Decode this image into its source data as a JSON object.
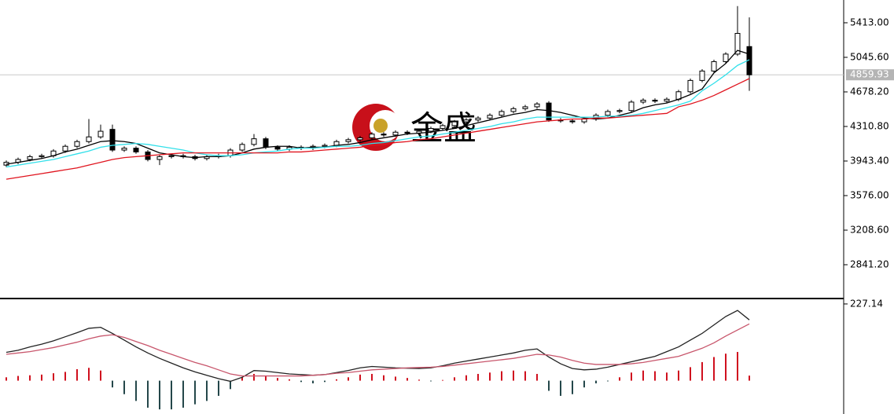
{
  "chart_data": [
    {
      "type": "candlestick",
      "watermark": "金盛",
      "ylim": [
        2482,
        5655
      ],
      "yticks": [
        {
          "value": 5413,
          "label": "5413.00"
        },
        {
          "value": 5045.6,
          "label": "5045.60"
        },
        {
          "value": 4678.2,
          "label": "4678.20"
        },
        {
          "value": 4310.8,
          "label": "4310.80"
        },
        {
          "value": 3943.4,
          "label": "3943.40"
        },
        {
          "value": 3576,
          "label": "3576.00"
        },
        {
          "value": 3208.6,
          "label": "3208.60"
        },
        {
          "value": 2841.2,
          "label": "2841.20"
        }
      ],
      "last_price": 4859.93,
      "up_color": "#ffffff",
      "down_color": "#000000",
      "open": [
        3900,
        3930,
        3960,
        3990,
        4000,
        4050,
        4100,
        4150,
        4200,
        4280,
        4060,
        4080,
        4040,
        3960,
        3990,
        4000,
        3990,
        3970,
        3990,
        4000,
        4060,
        4120,
        4180,
        4090,
        4070,
        4090,
        4080,
        4100,
        4110,
        4150,
        4170,
        4190,
        4230,
        4220,
        4250,
        4240,
        4260,
        4290,
        4320,
        4360,
        4380,
        4400,
        4430,
        4470,
        4500,
        4520,
        4560,
        4380,
        4370,
        4360,
        4390,
        4430,
        4470,
        4480,
        4570,
        4590,
        4580,
        4600,
        4680,
        4800,
        4900,
        5000,
        5080,
        5160
      ],
      "high": [
        3950,
        3980,
        4010,
        4020,
        4070,
        4120,
        4170,
        4390,
        4330,
        4330,
        4100,
        4100,
        4060,
        4010,
        4020,
        4020,
        4010,
        4010,
        4020,
        4080,
        4140,
        4230,
        4200,
        4110,
        4110,
        4110,
        4120,
        4130,
        4170,
        4190,
        4210,
        4250,
        4250,
        4270,
        4270,
        4280,
        4310,
        4340,
        4380,
        4400,
        4420,
        4450,
        4490,
        4520,
        4540,
        4570,
        4580,
        4400,
        4390,
        4410,
        4450,
        4490,
        4500,
        4590,
        4610,
        4610,
        4620,
        4700,
        4820,
        4920,
        5020,
        5100,
        5590,
        5470
      ],
      "low": [
        3880,
        3910,
        3940,
        3970,
        3980,
        4030,
        4080,
        4130,
        4180,
        4040,
        4040,
        4020,
        3940,
        3900,
        3970,
        3970,
        3950,
        3950,
        3970,
        3980,
        4040,
        4100,
        4070,
        4050,
        4050,
        4060,
        4060,
        4080,
        4090,
        4130,
        4150,
        4170,
        4200,
        4200,
        4220,
        4220,
        4240,
        4270,
        4300,
        4340,
        4360,
        4380,
        4410,
        4450,
        4480,
        4500,
        4360,
        4350,
        4340,
        4340,
        4370,
        4410,
        4450,
        4460,
        4550,
        4560,
        4560,
        4580,
        4660,
        4780,
        4880,
        4980,
        5060,
        4690
      ],
      "close": [
        3930,
        3960,
        3990,
        4000,
        4050,
        4100,
        4150,
        4200,
        4260,
        4060,
        4080,
        4040,
        3960,
        3990,
        4000,
        3990,
        3970,
        3990,
        4000,
        4060,
        4120,
        4180,
        4090,
        4070,
        4090,
        4080,
        4100,
        4110,
        4150,
        4170,
        4190,
        4230,
        4220,
        4250,
        4240,
        4260,
        4290,
        4320,
        4360,
        4380,
        4400,
        4430,
        4470,
        4500,
        4520,
        4550,
        4380,
        4370,
        4360,
        4390,
        4430,
        4470,
        4480,
        4570,
        4590,
        4580,
        4600,
        4680,
        4800,
        4900,
        5000,
        5080,
        5300,
        4860
      ],
      "series": [
        {
          "color": "#000000",
          "values": [
            3910,
            3930,
            3950,
            3970,
            4000,
            4040,
            4070,
            4110,
            4150,
            4160,
            4150,
            4130,
            4080,
            4030,
            4010,
            3990,
            3980,
            3990,
            3990,
            4000,
            4030,
            4070,
            4090,
            4100,
            4100,
            4080,
            4090,
            4090,
            4110,
            4120,
            4140,
            4170,
            4190,
            4210,
            4230,
            4240,
            4250,
            4270,
            4290,
            4320,
            4350,
            4380,
            4410,
            4440,
            4460,
            4490,
            4480,
            4460,
            4430,
            4400,
            4390,
            4400,
            4430,
            4460,
            4510,
            4540,
            4560,
            4600,
            4650,
            4710,
            4880,
            4980,
            5120,
            5080
          ]
        },
        {
          "color": "#33e0ea",
          "values": [
            3880,
            3900,
            3920,
            3940,
            3960,
            3990,
            4020,
            4050,
            4090,
            4110,
            4120,
            4130,
            4120,
            4100,
            4080,
            4060,
            4030,
            4010,
            4000,
            4000,
            4010,
            4030,
            4040,
            4050,
            4070,
            4080,
            4080,
            4090,
            4100,
            4100,
            4110,
            4130,
            4140,
            4160,
            4180,
            4200,
            4210,
            4230,
            4250,
            4270,
            4290,
            4310,
            4340,
            4360,
            4390,
            4410,
            4410,
            4410,
            4410,
            4410,
            4410,
            4420,
            4420,
            4430,
            4450,
            4480,
            4510,
            4540,
            4580,
            4690,
            4770,
            4860,
            4960,
            5020
          ]
        },
        {
          "color": "#e0141e",
          "values": [
            3750,
            3770,
            3790,
            3810,
            3830,
            3850,
            3870,
            3900,
            3930,
            3960,
            3980,
            3990,
            4000,
            4010,
            4020,
            4030,
            4030,
            4030,
            4030,
            4030,
            4030,
            4030,
            4030,
            4030,
            4040,
            4040,
            4050,
            4060,
            4070,
            4080,
            4090,
            4110,
            4120,
            4140,
            4150,
            4170,
            4180,
            4200,
            4220,
            4240,
            4260,
            4280,
            4300,
            4320,
            4340,
            4360,
            4370,
            4380,
            4390,
            4390,
            4400,
            4400,
            4410,
            4420,
            4430,
            4440,
            4450,
            4520,
            4550,
            4590,
            4640,
            4700,
            4760,
            4820
          ]
        }
      ]
    },
    {
      "type": "macd",
      "ylim": [
        -98.7,
        238.6
      ],
      "yticks": [
        227.14
      ],
      "up_color": "#d0101e",
      "down_color": "#24474a",
      "histogram": [
        10,
        14,
        16,
        18,
        22,
        26,
        34,
        38,
        30,
        -20,
        -40,
        -60,
        -80,
        -85,
        -85,
        -80,
        -70,
        -60,
        -45,
        -25,
        10,
        20,
        14,
        8,
        4,
        -4,
        -8,
        -4,
        4,
        10,
        18,
        20,
        16,
        12,
        8,
        3,
        -2,
        2,
        10,
        16,
        20,
        24,
        28,
        30,
        28,
        20,
        -30,
        -45,
        -40,
        -20,
        -8,
        -2,
        10,
        24,
        30,
        28,
        24,
        30,
        40,
        55,
        70,
        80,
        85,
        15
      ],
      "series": [
        {
          "color": "#222222",
          "values": [
            84,
            90,
            100,
            108,
            118,
            130,
            142,
            155,
            158,
            140,
            120,
            100,
            82,
            66,
            52,
            38,
            26,
            16,
            6,
            -2,
            10,
            30,
            28,
            24,
            20,
            18,
            16,
            18,
            24,
            30,
            38,
            42,
            40,
            38,
            37,
            36,
            38,
            44,
            52,
            58,
            64,
            70,
            76,
            82,
            90,
            94,
            70,
            50,
            36,
            32,
            34,
            40,
            48,
            56,
            64,
            72,
            86,
            100,
            120,
            140,
            165,
            190,
            208,
            180
          ]
        },
        {
          "color": "#c8566c",
          "values": [
            78,
            82,
            86,
            92,
            98,
            106,
            114,
            124,
            132,
            136,
            128,
            116,
            104,
            90,
            78,
            66,
            54,
            44,
            32,
            20,
            14,
            14,
            14,
            14,
            14,
            14,
            16,
            18,
            22,
            24,
            28,
            32,
            34,
            36,
            38,
            39,
            40,
            42,
            46,
            50,
            54,
            58,
            62,
            66,
            72,
            78,
            76,
            70,
            60,
            52,
            48,
            48,
            48,
            50,
            54,
            60,
            66,
            72,
            84,
            96,
            112,
            132,
            150,
            168
          ]
        }
      ]
    }
  ]
}
